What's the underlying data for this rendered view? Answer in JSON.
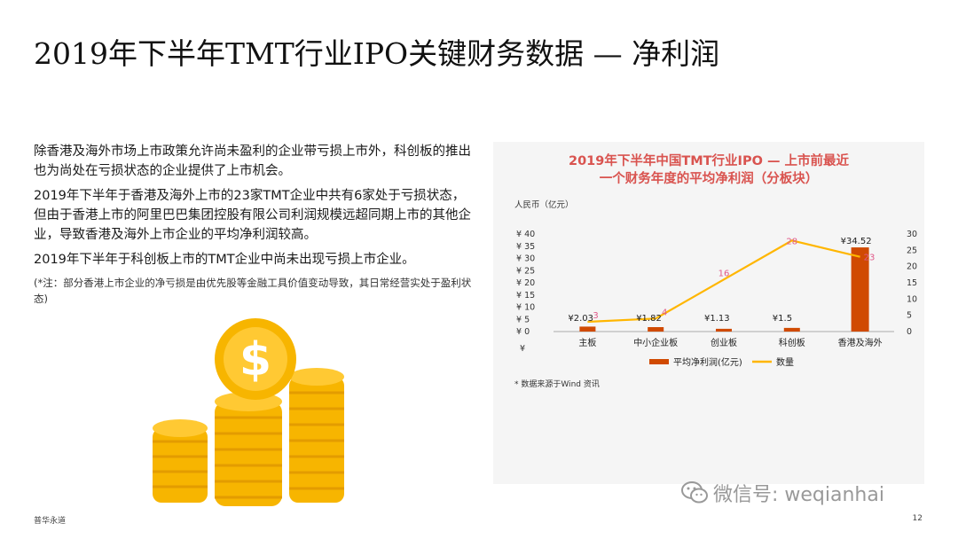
{
  "page": {
    "title": "2019年下半年TMT行业IPO关键财务数据 — 净利润",
    "footer_left": "普华永道",
    "page_number": "12"
  },
  "text": {
    "paragraphs": [
      "除香港及海外市场上市政策允许尚未盈利的企业带亏损上市外，科创板的推出也为尚处在亏损状态的企业提供了上市机会。",
      "2019年下半年于香港及海外上市的23家TMT企业中共有6家处于亏损状态，但由于香港上市的阿里巴巴集团控股有限公司利润规模远超同期上市的其他企业，导致香港及海外上市企业的平均净利润较高。",
      "2019年下半年于科创板上市的TMT企业中尚未出现亏损上市企业。"
    ],
    "note": "(*注：部分香港上市企业的净亏损是由优先股等金融工具价值变动导致，其日常经营实处于盈利状态)"
  },
  "watermark": {
    "text": "微信号: weqianhai",
    "icon": "wechat-icon"
  },
  "coins": {
    "icon": "dollar-coin-icon",
    "colors": {
      "coin": "#f7b500",
      "edge": "#e39c00",
      "symbol": "#ffffff"
    }
  },
  "chart_data": {
    "type": "bar",
    "title_line1": "2019年下半年中国TMT行业IPO — 上市前最近",
    "title_line2": "一个财务年度的平均净利润（分板块）",
    "y_unit_label": "人民币（亿元）",
    "categories": [
      "主板",
      "中小企业板",
      "创业板",
      "科创板",
      "香港及海外"
    ],
    "series": [
      {
        "name": "平均净利润(亿元)",
        "kind": "bar",
        "axis": "left",
        "color": "#d04a02",
        "values": [
          2.03,
          1.82,
          1.13,
          1.5,
          34.52
        ],
        "labels": [
          "¥2.03",
          "¥1.82",
          "¥1.13",
          "¥1.5",
          "¥34.52"
        ]
      },
      {
        "name": "数量",
        "kind": "line",
        "axis": "right",
        "color": "#ffb600",
        "values": [
          3,
          4,
          16,
          28,
          23
        ],
        "labels": [
          "3",
          "4",
          "16",
          "28",
          "23"
        ]
      }
    ],
    "left_axis": {
      "min": 0,
      "max": 40,
      "ticks": [
        0,
        5,
        10,
        15,
        20,
        25,
        30,
        35,
        40
      ],
      "tick_prefix": "¥",
      "extra_label": "¥"
    },
    "right_axis": {
      "min": 0,
      "max": 30,
      "ticks": [
        0,
        5,
        10,
        15,
        20,
        25,
        30
      ]
    },
    "legend_position": "bottom",
    "source": "* 数据来源于Wind 资讯",
    "label_color": "#e05a8a"
  }
}
